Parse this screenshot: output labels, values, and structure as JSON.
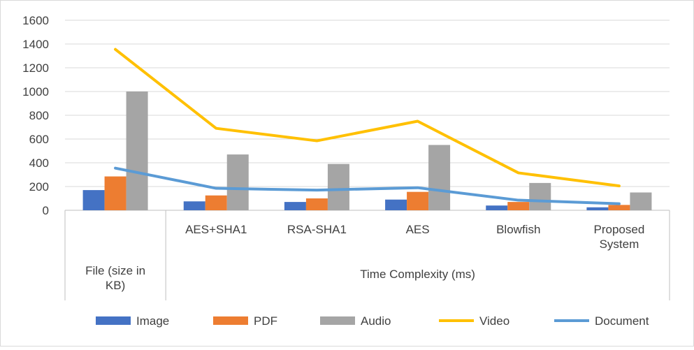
{
  "chart_data": {
    "type": "bar",
    "title": "",
    "xlabel": "",
    "ylabel": "",
    "ylim": [
      0,
      1600
    ],
    "yticks": [
      0,
      200,
      400,
      600,
      800,
      1000,
      1200,
      1400,
      1600
    ],
    "grid": true,
    "legend_position": "bottom",
    "group_labels": [
      {
        "label": "File (size in KB)",
        "lines": [
          "File (size in",
          "KB)"
        ],
        "span": [
          0,
          0
        ]
      },
      {
        "label": "Time Complexity (ms)",
        "lines": [
          "Time Complexity (ms)"
        ],
        "span": [
          1,
          5
        ]
      }
    ],
    "categories": [
      "",
      "AES+SHA1",
      "RSA-SHA1",
      "AES",
      "Blowfish",
      "Proposed System"
    ],
    "category_lines": [
      [],
      [
        "AES+SHA1"
      ],
      [
        "RSA-SHA1"
      ],
      [
        "AES"
      ],
      [
        "Blowfish"
      ],
      [
        "Proposed",
        "System"
      ]
    ],
    "series": [
      {
        "name": "Image",
        "type": "bar",
        "color": "#4472C4",
        "values": [
          170,
          75,
          70,
          90,
          40,
          25
        ]
      },
      {
        "name": "PDF",
        "type": "bar",
        "color": "#ED7D31",
        "values": [
          285,
          125,
          100,
          155,
          70,
          45
        ]
      },
      {
        "name": "Audio",
        "type": "bar",
        "color": "#A5A5A5",
        "values": [
          1000,
          470,
          390,
          550,
          230,
          150
        ]
      },
      {
        "name": "Video",
        "type": "line",
        "color": "#FFC000",
        "values": [
          1355,
          690,
          585,
          750,
          315,
          205
        ]
      },
      {
        "name": "Document",
        "type": "line",
        "color": "#5B9BD5",
        "values": [
          355,
          185,
          170,
          190,
          85,
          55
        ]
      }
    ]
  }
}
